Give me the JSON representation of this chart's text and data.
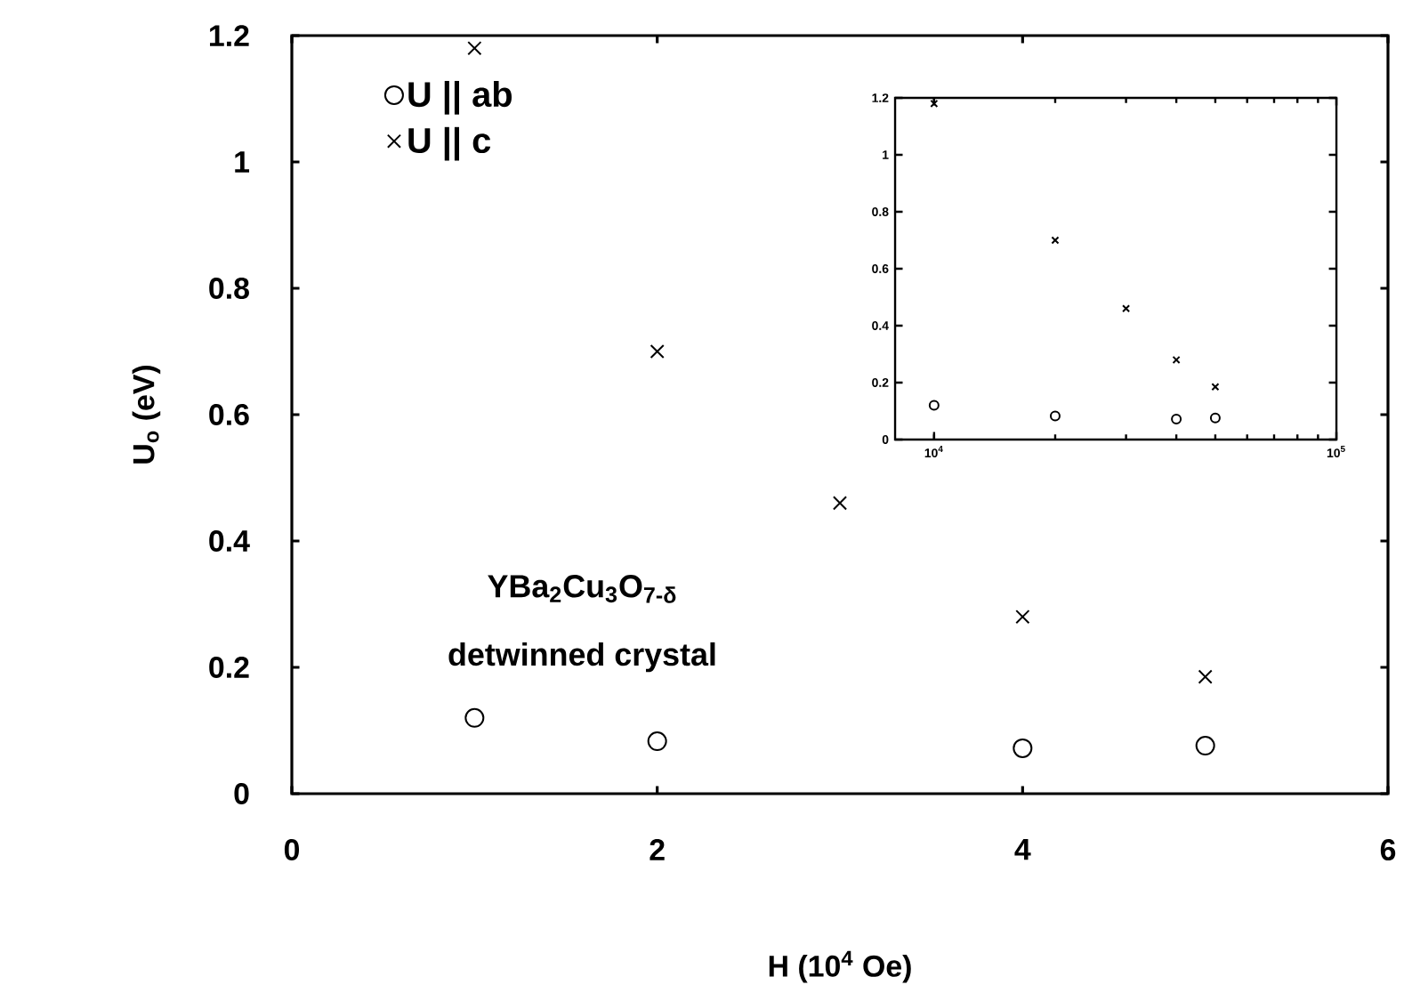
{
  "chart_data": [
    {
      "type": "scatter",
      "xlabel": "H (10$^{4}$ Oe)",
      "ylabel": "U$_{o}$ (eV)",
      "xlim": [
        0,
        6
      ],
      "xticks": [
        0,
        2,
        4,
        6
      ],
      "ylim": [
        0,
        1.2
      ],
      "yticks": [
        0,
        0.2,
        0.4,
        0.6,
        0.8,
        1,
        1.2
      ],
      "legend": "top left",
      "grid": false,
      "annotations": [
        "YBa$_{2}$Cu$_{3}$O$_{7-δ}$",
        "detwinned crystal"
      ],
      "series": [
        {
          "name": "U || ab",
          "color": "#000000",
          "marker": "circle",
          "x": [
            1,
            2,
            4,
            5
          ],
          "values": [
            0.12,
            0.083,
            0.072,
            0.076
          ]
        },
        {
          "name": "U || c",
          "color": "#000000",
          "marker": "cross",
          "x": [
            1,
            2,
            3,
            4,
            5
          ],
          "values": [
            1.18,
            0.7,
            0.46,
            0.28,
            0.185
          ]
        }
      ]
    },
    {
      "type": "scatter",
      "log": "x",
      "xlim": [
        8000,
        100000
      ],
      "xticks": [
        {
          "value": 10000,
          "label": "10$^{4}$"
        },
        {
          "value": 100000,
          "label": "10$^{5}$"
        }
      ],
      "ylim": [
        0,
        1.2
      ],
      "yticks": [
        0,
        0.2,
        0.4,
        0.6,
        0.8,
        1,
        1.2
      ],
      "legend": false,
      "grid": false,
      "series": [
        {
          "color": "#000000",
          "marker": "circle",
          "x": [
            10000,
            20000,
            40000,
            50000
          ],
          "values": [
            0.12,
            0.083,
            0.072,
            0.076
          ]
        },
        {
          "color": "#000000",
          "marker": "cross",
          "x": [
            10000,
            20000,
            30000,
            40000,
            50000
          ],
          "values": [
            1.18,
            0.7,
            0.46,
            0.28,
            0.185
          ]
        }
      ]
    }
  ]
}
